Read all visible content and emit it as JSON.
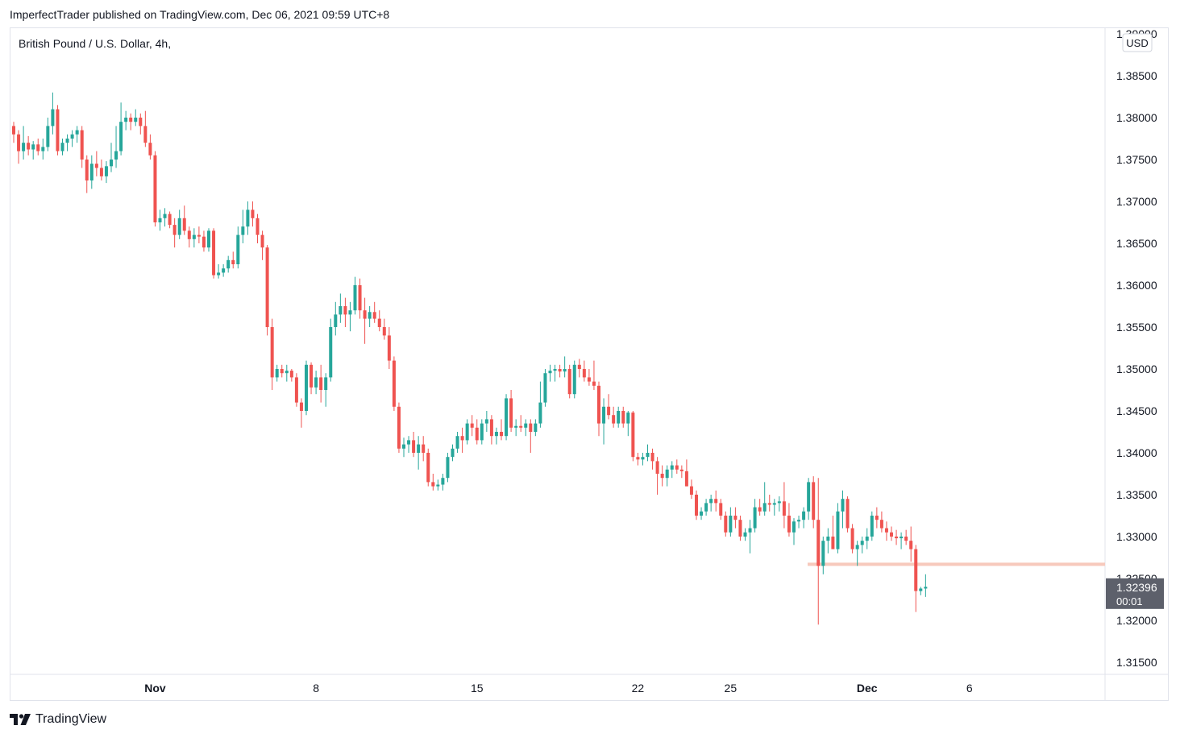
{
  "header": {
    "published_text": "ImperfectTrader published on TradingView.com, Dec 06, 2021 09:59 UTC+8"
  },
  "footer": {
    "brand": "TradingView",
    "logo_icon": "tradingview-logo-icon"
  },
  "colors": {
    "up": "#26a69a",
    "down": "#ef5350",
    "support_line": "#f7c9bc",
    "price_tag_bg": "#5d606b"
  },
  "chart_data": {
    "type": "candlestick",
    "title": "British Pound / U.S. Dollar, 4h,",
    "currency_label": "USD",
    "y_ticks": [
      "1.38500",
      "1.38000",
      "1.37500",
      "1.37000",
      "1.36500",
      "1.36000",
      "1.35500",
      "1.35000",
      "1.34500",
      "1.34000",
      "1.33500",
      "1.33000",
      "1.32500",
      "1.32000",
      "1.31500"
    ],
    "top_tick_partial": "1.39000",
    "x_ticks": [
      {
        "label": "Nov",
        "bold": true,
        "index": 29
      },
      {
        "label": "8",
        "bold": false,
        "index": 62
      },
      {
        "label": "15",
        "bold": false,
        "index": 95
      },
      {
        "label": "22",
        "bold": false,
        "index": 128
      },
      {
        "label": "25",
        "bold": false,
        "index": 147
      },
      {
        "label": "Dec",
        "bold": true,
        "index": 175
      },
      {
        "label": "6",
        "bold": false,
        "index": 196
      }
    ],
    "horizontal_line": {
      "price": 1.3267
    },
    "last_price": {
      "value": "1.32396",
      "countdown": "00:01"
    },
    "ylim": [
      1.3125,
      1.3905
    ],
    "ohlc": [
      [
        1.379,
        1.3795,
        1.377,
        1.378
      ],
      [
        1.378,
        1.3785,
        1.3745,
        1.376
      ],
      [
        1.376,
        1.379,
        1.375,
        1.377
      ],
      [
        1.377,
        1.3778,
        1.3755,
        1.3762
      ],
      [
        1.3762,
        1.3772,
        1.375,
        1.3768
      ],
      [
        1.3768,
        1.3775,
        1.3755,
        1.376
      ],
      [
        1.376,
        1.3775,
        1.375,
        1.3765
      ],
      [
        1.3765,
        1.38,
        1.376,
        1.379
      ],
      [
        1.379,
        1.383,
        1.378,
        1.381
      ],
      [
        1.381,
        1.3815,
        1.3755,
        1.376
      ],
      [
        1.376,
        1.3775,
        1.3755,
        1.377
      ],
      [
        1.377,
        1.378,
        1.376,
        1.3775
      ],
      [
        1.3775,
        1.3785,
        1.3765,
        1.378
      ],
      [
        1.378,
        1.379,
        1.377,
        1.3785
      ],
      [
        1.3785,
        1.379,
        1.374,
        1.375
      ],
      [
        1.375,
        1.3755,
        1.371,
        1.3725
      ],
      [
        1.3725,
        1.3755,
        1.3715,
        1.3745
      ],
      [
        1.3745,
        1.376,
        1.373,
        1.374
      ],
      [
        1.374,
        1.375,
        1.3725,
        1.373
      ],
      [
        1.373,
        1.3748,
        1.3722,
        1.3742
      ],
      [
        1.3742,
        1.377,
        1.3735,
        1.375
      ],
      [
        1.375,
        1.379,
        1.374,
        1.376
      ],
      [
        1.376,
        1.3818,
        1.3755,
        1.3795
      ],
      [
        1.3795,
        1.3808,
        1.3785,
        1.38
      ],
      [
        1.38,
        1.3805,
        1.3785,
        1.3795
      ],
      [
        1.3795,
        1.381,
        1.379,
        1.38
      ],
      [
        1.38,
        1.3805,
        1.378,
        1.379
      ],
      [
        1.379,
        1.3808,
        1.3765,
        1.377
      ],
      [
        1.377,
        1.378,
        1.375,
        1.3755
      ],
      [
        1.3755,
        1.376,
        1.367,
        1.3675
      ],
      [
        1.3675,
        1.369,
        1.3665,
        1.368
      ],
      [
        1.368,
        1.3692,
        1.367,
        1.3685
      ],
      [
        1.3685,
        1.3688,
        1.3668,
        1.3672
      ],
      [
        1.3672,
        1.368,
        1.3645,
        1.366
      ],
      [
        1.366,
        1.369,
        1.3655,
        1.368
      ],
      [
        1.368,
        1.3695,
        1.366,
        1.3665
      ],
      [
        1.3665,
        1.367,
        1.3645,
        1.3655
      ],
      [
        1.3655,
        1.3668,
        1.3645,
        1.366
      ],
      [
        1.366,
        1.367,
        1.365,
        1.3658
      ],
      [
        1.3658,
        1.3665,
        1.364,
        1.3645
      ],
      [
        1.3645,
        1.3668,
        1.364,
        1.3665
      ],
      [
        1.3665,
        1.3668,
        1.3608,
        1.3612
      ],
      [
        1.3612,
        1.3625,
        1.3608,
        1.3615
      ],
      [
        1.3615,
        1.3625,
        1.361,
        1.362
      ],
      [
        1.362,
        1.3635,
        1.3615,
        1.363
      ],
      [
        1.363,
        1.364,
        1.362,
        1.3625
      ],
      [
        1.3625,
        1.367,
        1.362,
        1.366
      ],
      [
        1.366,
        1.369,
        1.365,
        1.367
      ],
      [
        1.367,
        1.37,
        1.366,
        1.369
      ],
      [
        1.369,
        1.37,
        1.367,
        1.368
      ],
      [
        1.368,
        1.3685,
        1.365,
        1.366
      ],
      [
        1.366,
        1.3665,
        1.363,
        1.3645
      ],
      [
        1.3645,
        1.3648,
        1.354,
        1.355
      ],
      [
        1.355,
        1.356,
        1.3475,
        1.349
      ],
      [
        1.349,
        1.3505,
        1.3485,
        1.35
      ],
      [
        1.35,
        1.3505,
        1.349,
        1.3495
      ],
      [
        1.3495,
        1.3505,
        1.3485,
        1.3498
      ],
      [
        1.3498,
        1.35,
        1.3485,
        1.349
      ],
      [
        1.349,
        1.3495,
        1.3455,
        1.346
      ],
      [
        1.346,
        1.3465,
        1.343,
        1.345
      ],
      [
        1.345,
        1.351,
        1.3445,
        1.3505
      ],
      [
        1.3505,
        1.3508,
        1.347,
        1.3478
      ],
      [
        1.3478,
        1.3498,
        1.347,
        1.349
      ],
      [
        1.349,
        1.3505,
        1.346,
        1.3475
      ],
      [
        1.3475,
        1.3495,
        1.3455,
        1.349
      ],
      [
        1.349,
        1.356,
        1.3485,
        1.355
      ],
      [
        1.355,
        1.358,
        1.354,
        1.3565
      ],
      [
        1.3565,
        1.359,
        1.3555,
        1.3575
      ],
      [
        1.3575,
        1.3585,
        1.355,
        1.3565
      ],
      [
        1.3565,
        1.358,
        1.3545,
        1.357
      ],
      [
        1.357,
        1.361,
        1.3565,
        1.36
      ],
      [
        1.36,
        1.3608,
        1.356,
        1.357
      ],
      [
        1.357,
        1.3585,
        1.353,
        1.356
      ],
      [
        1.356,
        1.3575,
        1.355,
        1.3568
      ],
      [
        1.3568,
        1.358,
        1.3555,
        1.356
      ],
      [
        1.356,
        1.357,
        1.3545,
        1.355
      ],
      [
        1.355,
        1.356,
        1.3535,
        1.354
      ],
      [
        1.354,
        1.355,
        1.35,
        1.351
      ],
      [
        1.351,
        1.3515,
        1.345,
        1.3455
      ],
      [
        1.3455,
        1.346,
        1.34,
        1.3405
      ],
      [
        1.3405,
        1.3418,
        1.3395,
        1.341
      ],
      [
        1.341,
        1.342,
        1.34,
        1.3415
      ],
      [
        1.3415,
        1.3425,
        1.3395,
        1.34
      ],
      [
        1.34,
        1.342,
        1.338,
        1.341
      ],
      [
        1.341,
        1.342,
        1.339,
        1.34
      ],
      [
        1.34,
        1.3405,
        1.336,
        1.3365
      ],
      [
        1.3365,
        1.3375,
        1.3355,
        1.336
      ],
      [
        1.336,
        1.3368,
        1.3355,
        1.3362
      ],
      [
        1.3362,
        1.3375,
        1.3355,
        1.337
      ],
      [
        1.337,
        1.34,
        1.3365,
        1.3395
      ],
      [
        1.3395,
        1.341,
        1.339,
        1.3405
      ],
      [
        1.3405,
        1.3425,
        1.34,
        1.342
      ],
      [
        1.342,
        1.343,
        1.34,
        1.3415
      ],
      [
        1.3415,
        1.344,
        1.341,
        1.3435
      ],
      [
        1.3435,
        1.3445,
        1.342,
        1.343
      ],
      [
        1.343,
        1.344,
        1.341,
        1.3415
      ],
      [
        1.3415,
        1.344,
        1.341,
        1.3435
      ],
      [
        1.3435,
        1.345,
        1.3425,
        1.344
      ],
      [
        1.344,
        1.3445,
        1.341,
        1.342
      ],
      [
        1.342,
        1.343,
        1.341,
        1.3425
      ],
      [
        1.3425,
        1.344,
        1.3415,
        1.342
      ],
      [
        1.342,
        1.347,
        1.3415,
        1.3465
      ],
      [
        1.3465,
        1.3475,
        1.3425,
        1.343
      ],
      [
        1.343,
        1.344,
        1.342,
        1.3432
      ],
      [
        1.3432,
        1.3445,
        1.3425,
        1.343
      ],
      [
        1.343,
        1.344,
        1.342,
        1.3435
      ],
      [
        1.3435,
        1.344,
        1.34,
        1.3425
      ],
      [
        1.3425,
        1.344,
        1.342,
        1.3435
      ],
      [
        1.3435,
        1.3485,
        1.343,
        1.346
      ],
      [
        1.346,
        1.35,
        1.3455,
        1.3495
      ],
      [
        1.3495,
        1.3505,
        1.3485,
        1.3498
      ],
      [
        1.3498,
        1.3505,
        1.3485,
        1.35
      ],
      [
        1.35,
        1.3505,
        1.349,
        1.3497
      ],
      [
        1.3497,
        1.3515,
        1.349,
        1.35
      ],
      [
        1.35,
        1.3505,
        1.3465,
        1.347
      ],
      [
        1.347,
        1.351,
        1.3465,
        1.3505
      ],
      [
        1.3505,
        1.3512,
        1.349,
        1.35
      ],
      [
        1.35,
        1.351,
        1.3485,
        1.349
      ],
      [
        1.349,
        1.35,
        1.348,
        1.3485
      ],
      [
        1.3485,
        1.351,
        1.3475,
        1.348
      ],
      [
        1.348,
        1.3485,
        1.342,
        1.3435
      ],
      [
        1.3435,
        1.3465,
        1.341,
        1.3455
      ],
      [
        1.3455,
        1.347,
        1.344,
        1.3445
      ],
      [
        1.3445,
        1.3455,
        1.343,
        1.3435
      ],
      [
        1.3435,
        1.3455,
        1.343,
        1.345
      ],
      [
        1.345,
        1.3455,
        1.343,
        1.3435
      ],
      [
        1.3435,
        1.345,
        1.342,
        1.3448
      ],
      [
        1.3448,
        1.345,
        1.339,
        1.3395
      ],
      [
        1.3395,
        1.34,
        1.3385,
        1.3392
      ],
      [
        1.3392,
        1.34,
        1.3385,
        1.3395
      ],
      [
        1.3395,
        1.341,
        1.339,
        1.34
      ],
      [
        1.34,
        1.3405,
        1.338,
        1.339
      ],
      [
        1.339,
        1.3395,
        1.335,
        1.3375
      ],
      [
        1.3375,
        1.3385,
        1.336,
        1.337
      ],
      [
        1.337,
        1.3385,
        1.336,
        1.338
      ],
      [
        1.338,
        1.339,
        1.337,
        1.3385
      ],
      [
        1.3385,
        1.3392,
        1.3375,
        1.338
      ],
      [
        1.338,
        1.3385,
        1.337,
        1.3378
      ],
      [
        1.3378,
        1.3392,
        1.336,
        1.336
      ],
      [
        1.336,
        1.3368,
        1.3345,
        1.335
      ],
      [
        1.335,
        1.3355,
        1.332,
        1.3325
      ],
      [
        1.3325,
        1.3335,
        1.332,
        1.333
      ],
      [
        1.333,
        1.3345,
        1.3325,
        1.334
      ],
      [
        1.334,
        1.335,
        1.333,
        1.3345
      ],
      [
        1.3345,
        1.3355,
        1.333,
        1.334
      ],
      [
        1.334,
        1.3345,
        1.332,
        1.3325
      ],
      [
        1.3325,
        1.333,
        1.33,
        1.3305
      ],
      [
        1.3305,
        1.3335,
        1.33,
        1.3325
      ],
      [
        1.3325,
        1.3335,
        1.331,
        1.332
      ],
      [
        1.332,
        1.3325,
        1.3295,
        1.33
      ],
      [
        1.33,
        1.331,
        1.3295,
        1.3305
      ],
      [
        1.3305,
        1.332,
        1.328,
        1.331
      ],
      [
        1.331,
        1.3345,
        1.3305,
        1.3335
      ],
      [
        1.3335,
        1.3345,
        1.3325,
        1.333
      ],
      [
        1.333,
        1.3365,
        1.3325,
        1.334
      ],
      [
        1.334,
        1.335,
        1.333,
        1.3338
      ],
      [
        1.3338,
        1.3345,
        1.3325,
        1.334
      ],
      [
        1.334,
        1.3348,
        1.333,
        1.3342
      ],
      [
        1.3342,
        1.3365,
        1.331,
        1.3325
      ],
      [
        1.3325,
        1.334,
        1.33,
        1.3305
      ],
      [
        1.3305,
        1.3322,
        1.329,
        1.3318
      ],
      [
        1.3318,
        1.3325,
        1.331,
        1.332
      ],
      [
        1.332,
        1.3335,
        1.331,
        1.333
      ],
      [
        1.333,
        1.337,
        1.332,
        1.3365
      ],
      [
        1.3365,
        1.3372,
        1.331,
        1.332
      ],
      [
        1.332,
        1.337,
        1.3195,
        1.3265
      ],
      [
        1.3265,
        1.33,
        1.3255,
        1.3295
      ],
      [
        1.3295,
        1.331,
        1.328,
        1.33
      ],
      [
        1.33,
        1.3325,
        1.329,
        1.3285
      ],
      [
        1.3285,
        1.334,
        1.328,
        1.333
      ],
      [
        1.333,
        1.3355,
        1.331,
        1.3345
      ],
      [
        1.3345,
        1.3348,
        1.3305,
        1.331
      ],
      [
        1.331,
        1.3315,
        1.328,
        1.3285
      ],
      [
        1.3285,
        1.3295,
        1.3265,
        1.329
      ],
      [
        1.329,
        1.33,
        1.328,
        1.3295
      ],
      [
        1.3295,
        1.331,
        1.3285,
        1.33
      ],
      [
        1.33,
        1.333,
        1.3295,
        1.3325
      ],
      [
        1.3325,
        1.3335,
        1.331,
        1.332
      ],
      [
        1.332,
        1.333,
        1.3305,
        1.331
      ],
      [
        1.331,
        1.3318,
        1.3295,
        1.3305
      ],
      [
        1.3305,
        1.3312,
        1.3295,
        1.33
      ],
      [
        1.33,
        1.3308,
        1.329,
        1.3298
      ],
      [
        1.3298,
        1.3305,
        1.3285,
        1.33
      ],
      [
        1.33,
        1.3308,
        1.329,
        1.3295
      ],
      [
        1.3295,
        1.3312,
        1.327,
        1.3285
      ],
      [
        1.3285,
        1.329,
        1.321,
        1.3235
      ],
      [
        1.3235,
        1.324,
        1.323,
        1.3238
      ],
      [
        1.3238,
        1.3255,
        1.3228,
        1.324
      ]
    ]
  }
}
